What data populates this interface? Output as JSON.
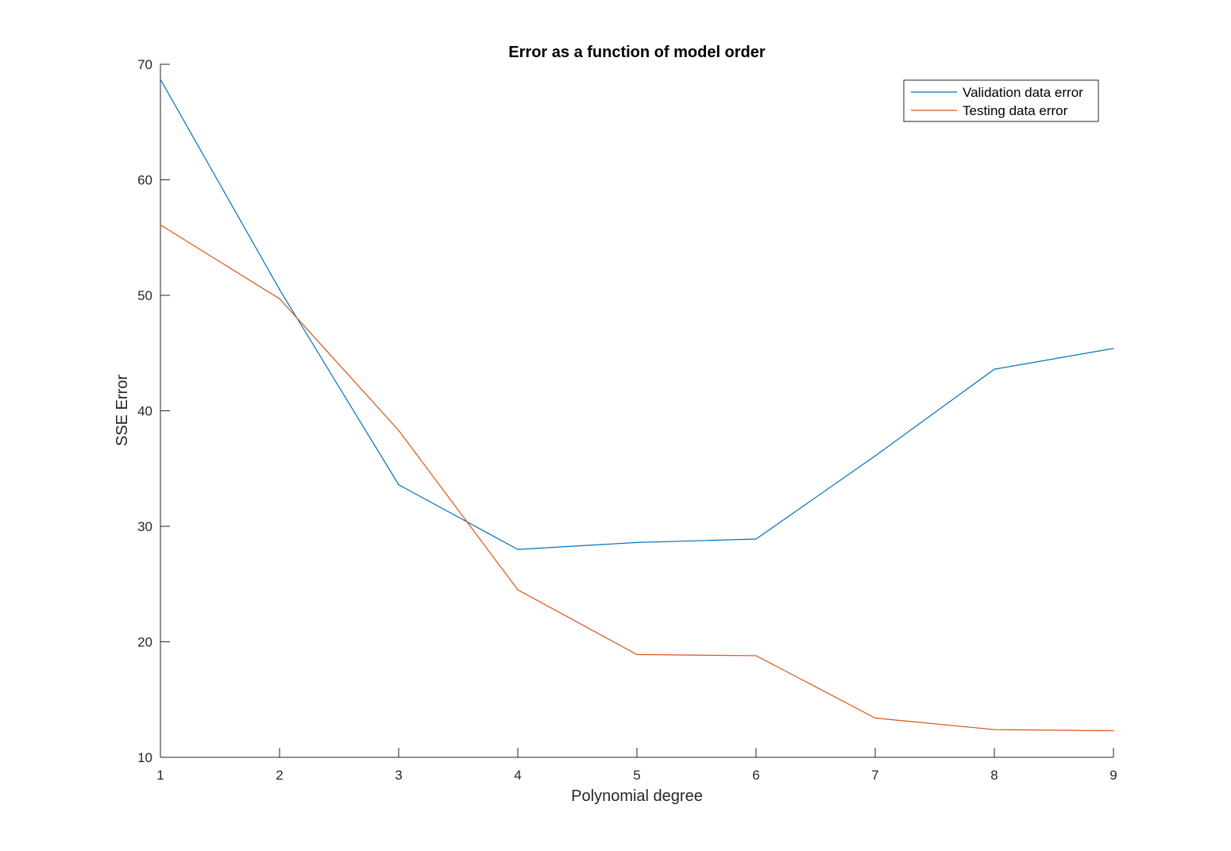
{
  "chart_data": {
    "type": "line",
    "title": "Error as a function of model order",
    "xlabel": "Polynomial degree",
    "ylabel": "SSE Error",
    "x": [
      1,
      2,
      3,
      4,
      5,
      6,
      7,
      8,
      9
    ],
    "xlim": [
      1,
      9
    ],
    "ylim": [
      10,
      70
    ],
    "xticks": [
      1,
      2,
      3,
      4,
      5,
      6,
      7,
      8,
      9
    ],
    "yticks": [
      10,
      20,
      30,
      40,
      50,
      60,
      70
    ],
    "grid": false,
    "legend_position": "top-right",
    "series": [
      {
        "name": "Validation data error",
        "color": "#0072BD",
        "values": [
          68.7,
          50.5,
          33.6,
          28.0,
          28.6,
          28.9,
          36.1,
          43.6,
          45.4
        ]
      },
      {
        "name": "Testing data error",
        "color": "#D95319",
        "values": [
          56.1,
          49.7,
          38.3,
          24.5,
          18.9,
          18.8,
          13.4,
          12.4,
          12.3
        ]
      }
    ]
  }
}
